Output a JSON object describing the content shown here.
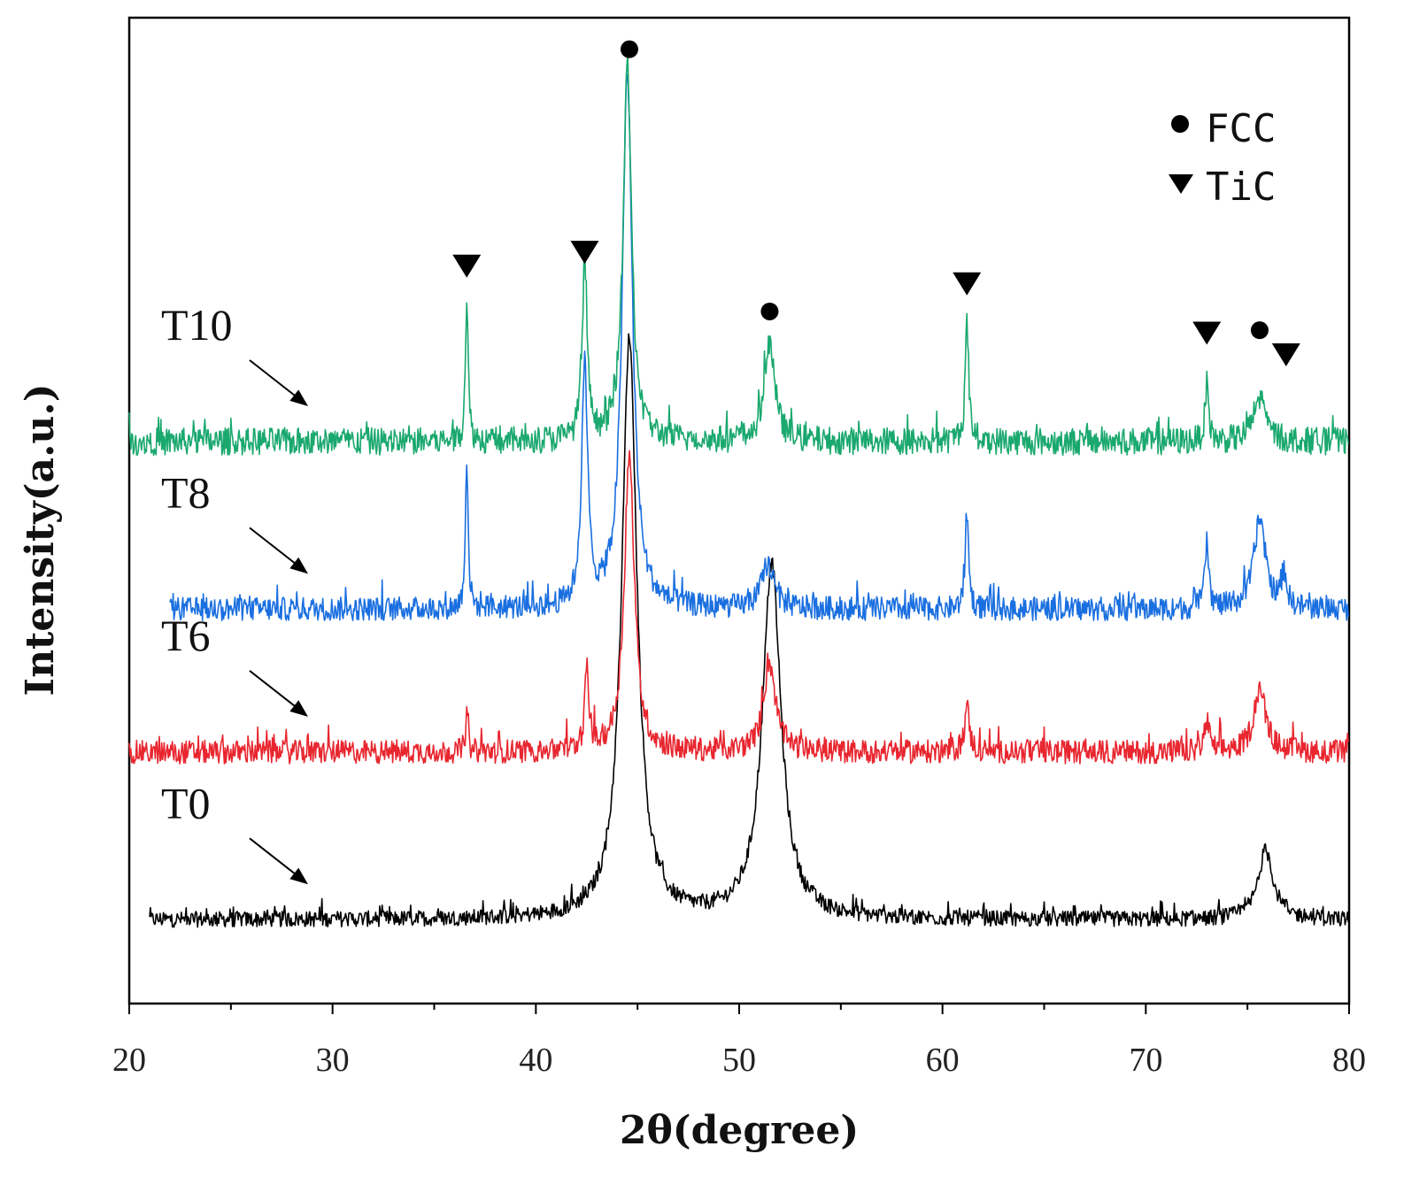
{
  "chart_data": {
    "type": "line",
    "title": "",
    "xlabel": "2θ(degree)",
    "ylabel": "Intensity(a.u.)",
    "xlim": [
      20,
      80
    ],
    "ylim": [
      0,
      1000
    ],
    "xticks": [
      "20",
      "30",
      "40",
      "50",
      "60",
      "70",
      "80"
    ],
    "y_ticks_shown": false,
    "legend": {
      "position": "top-right",
      "entries": [
        {
          "marker": "circle",
          "label": "FCC"
        },
        {
          "marker": "triangle-down",
          "label": "TiC"
        }
      ]
    },
    "series": [
      {
        "name": "T0",
        "color": "#000000",
        "baseline": 85,
        "noise": 8,
        "hash_start": 21,
        "peaks": [
          {
            "x": 44.6,
            "height": 590,
            "width": 0.45
          },
          {
            "x": 51.6,
            "height": 360,
            "width": 0.55
          },
          {
            "x": 75.9,
            "height": 70,
            "width": 0.45
          }
        ]
      },
      {
        "name": "T6",
        "color": "#e8262f",
        "baseline": 255,
        "noise": 12,
        "hash_start": 20,
        "peaks": [
          {
            "x": 36.6,
            "height": 35,
            "width": 0.08
          },
          {
            "x": 42.5,
            "height": 80,
            "width": 0.12
          },
          {
            "x": 44.6,
            "height": 300,
            "width": 0.3
          },
          {
            "x": 51.5,
            "height": 90,
            "width": 0.35
          },
          {
            "x": 61.2,
            "height": 45,
            "width": 0.15
          },
          {
            "x": 73.0,
            "height": 30,
            "width": 0.15
          },
          {
            "x": 75.6,
            "height": 65,
            "width": 0.35
          }
        ]
      },
      {
        "name": "T8",
        "color": "#1a6fe0",
        "baseline": 400,
        "noise": 12,
        "hash_start": 22,
        "peaks": [
          {
            "x": 36.6,
            "height": 155,
            "width": 0.08
          },
          {
            "x": 42.4,
            "height": 240,
            "width": 0.18
          },
          {
            "x": 44.5,
            "height": 545,
            "width": 0.3
          },
          {
            "x": 51.4,
            "height": 45,
            "width": 0.35
          },
          {
            "x": 61.2,
            "height": 100,
            "width": 0.1
          },
          {
            "x": 73.0,
            "height": 65,
            "width": 0.12
          },
          {
            "x": 75.6,
            "height": 90,
            "width": 0.35
          },
          {
            "x": 76.8,
            "height": 35,
            "width": 0.15
          }
        ]
      },
      {
        "name": "T10",
        "color": "#1aa86e",
        "baseline": 570,
        "noise": 14,
        "hash_start": 20,
        "peaks": [
          {
            "x": 36.6,
            "height": 150,
            "width": 0.08
          },
          {
            "x": 42.4,
            "height": 175,
            "width": 0.15
          },
          {
            "x": 44.5,
            "height": 380,
            "width": 0.25
          },
          {
            "x": 51.5,
            "height": 100,
            "width": 0.3
          },
          {
            "x": 61.2,
            "height": 125,
            "width": 0.1
          },
          {
            "x": 73.0,
            "height": 60,
            "width": 0.1
          },
          {
            "x": 75.6,
            "height": 45,
            "width": 0.35
          }
        ]
      }
    ],
    "phase_markers": [
      {
        "phase": "FCC",
        "marker": "circle",
        "x": 44.6,
        "y": 968
      },
      {
        "phase": "TiC",
        "marker": "triangle-down",
        "x": 36.6,
        "y": 748
      },
      {
        "phase": "TiC",
        "marker": "triangle-down",
        "x": 42.4,
        "y": 762
      },
      {
        "phase": "FCC",
        "marker": "circle",
        "x": 51.5,
        "y": 702
      },
      {
        "phase": "TiC",
        "marker": "triangle-down",
        "x": 61.2,
        "y": 730
      },
      {
        "phase": "TiC",
        "marker": "triangle-down",
        "x": 73.0,
        "y": 680
      },
      {
        "phase": "FCC",
        "marker": "circle",
        "x": 75.6,
        "y": 683
      },
      {
        "phase": "TiC",
        "marker": "triangle-down",
        "x": 76.9,
        "y": 658
      }
    ],
    "sample_labels": [
      {
        "text": "T10",
        "series": "T10"
      },
      {
        "text": "T8",
        "series": "T8"
      },
      {
        "text": "T6",
        "series": "T6"
      },
      {
        "text": "T0",
        "series": "T0"
      }
    ]
  }
}
